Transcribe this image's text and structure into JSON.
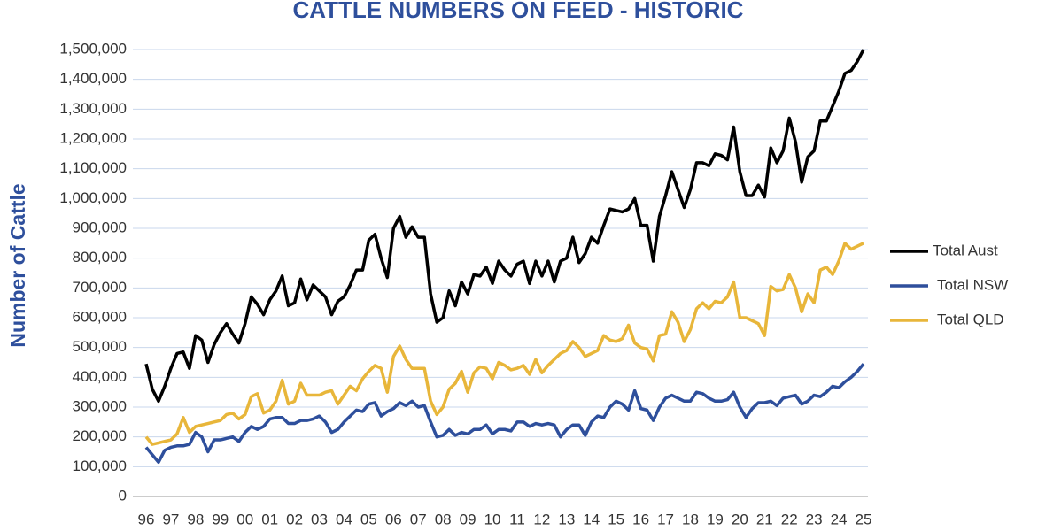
{
  "chart_data": {
    "type": "line",
    "title": "CATTLE NUMBERS ON FEED - HISTORIC",
    "y_label": "Number of Cattle",
    "categories": [
      "96",
      null,
      null,
      null,
      "97",
      null,
      null,
      null,
      "98",
      null,
      null,
      null,
      "99",
      null,
      null,
      null,
      "00",
      null,
      null,
      null,
      "01",
      null,
      null,
      null,
      "02",
      null,
      null,
      null,
      "03",
      null,
      null,
      null,
      "04",
      null,
      null,
      null,
      "05",
      null,
      null,
      null,
      "06",
      null,
      null,
      null,
      "07",
      null,
      null,
      null,
      "08",
      null,
      null,
      null,
      "09",
      null,
      null,
      null,
      "10",
      null,
      null,
      null,
      "11",
      null,
      null,
      null,
      "12",
      null,
      null,
      null,
      "13",
      null,
      null,
      null,
      "14",
      null,
      null,
      null,
      "15",
      null,
      null,
      null,
      "16",
      null,
      null,
      null,
      "17",
      null,
      null,
      null,
      "18",
      null,
      null,
      null,
      "19",
      null,
      null,
      null,
      "20",
      null,
      null,
      null,
      "21",
      null,
      null,
      null,
      "22",
      null,
      null,
      null,
      "23",
      null,
      null,
      null,
      "24",
      null,
      null,
      null,
      "25"
    ],
    "series": [
      {
        "name": "Total Aust",
        "color": "#000000",
        "values": [
          445000,
          360000,
          320000,
          370000,
          430000,
          480000,
          485000,
          430000,
          540000,
          525000,
          450000,
          510000,
          550000,
          580000,
          545000,
          515000,
          580000,
          670000,
          645000,
          610000,
          660000,
          690000,
          740000,
          640000,
          650000,
          730000,
          660000,
          710000,
          690000,
          670000,
          610000,
          655000,
          670000,
          710000,
          760000,
          760000,
          860000,
          880000,
          800000,
          735000,
          900000,
          940000,
          870000,
          905000,
          870000,
          870000,
          680000,
          585000,
          600000,
          690000,
          640000,
          720000,
          680000,
          745000,
          740000,
          770000,
          715000,
          790000,
          760000,
          740000,
          780000,
          790000,
          715000,
          790000,
          740000,
          790000,
          720000,
          790000,
          800000,
          870000,
          785000,
          815000,
          870000,
          850000,
          910000,
          965000,
          960000,
          955000,
          965000,
          1000000,
          910000,
          910000,
          790000,
          940000,
          1010000,
          1090000,
          1030000,
          970000,
          1030000,
          1120000,
          1120000,
          1110000,
          1150000,
          1145000,
          1130000,
          1240000,
          1090000,
          1010000,
          1010000,
          1045000,
          1005000,
          1170000,
          1120000,
          1160000,
          1270000,
          1190000,
          1055000,
          1140000,
          1160000,
          1260000,
          1260000,
          1310000,
          1360000,
          1420000,
          1430000,
          1460000,
          1500000
        ]
      },
      {
        "name": "Total NSW",
        "color": "#2e4f9c",
        "values": [
          165000,
          140000,
          115000,
          155000,
          165000,
          170000,
          170000,
          175000,
          215000,
          200000,
          150000,
          190000,
          190000,
          195000,
          200000,
          185000,
          215000,
          235000,
          225000,
          235000,
          260000,
          265000,
          265000,
          245000,
          245000,
          255000,
          255000,
          260000,
          270000,
          250000,
          215000,
          225000,
          250000,
          270000,
          290000,
          285000,
          310000,
          315000,
          270000,
          285000,
          295000,
          315000,
          305000,
          320000,
          300000,
          305000,
          250000,
          200000,
          205000,
          225000,
          205000,
          215000,
          210000,
          225000,
          225000,
          240000,
          210000,
          225000,
          225000,
          220000,
          250000,
          250000,
          235000,
          245000,
          240000,
          245000,
          240000,
          200000,
          225000,
          240000,
          240000,
          205000,
          250000,
          270000,
          265000,
          300000,
          320000,
          310000,
          290000,
          355000,
          295000,
          290000,
          255000,
          300000,
          330000,
          340000,
          330000,
          320000,
          320000,
          350000,
          345000,
          330000,
          320000,
          320000,
          325000,
          350000,
          300000,
          265000,
          295000,
          315000,
          315000,
          320000,
          305000,
          330000,
          335000,
          340000,
          310000,
          320000,
          340000,
          335000,
          350000,
          370000,
          365000,
          385000,
          400000,
          420000,
          445000
        ]
      },
      {
        "name": "Total QLD",
        "color": "#e8b63a",
        "values": [
          200000,
          175000,
          180000,
          185000,
          190000,
          210000,
          265000,
          215000,
          235000,
          240000,
          245000,
          250000,
          255000,
          275000,
          280000,
          260000,
          275000,
          335000,
          345000,
          280000,
          290000,
          320000,
          390000,
          310000,
          320000,
          380000,
          340000,
          340000,
          340000,
          350000,
          355000,
          310000,
          340000,
          370000,
          355000,
          395000,
          420000,
          440000,
          430000,
          350000,
          470000,
          505000,
          460000,
          430000,
          430000,
          430000,
          320000,
          275000,
          300000,
          360000,
          380000,
          420000,
          350000,
          415000,
          435000,
          430000,
          395000,
          450000,
          440000,
          425000,
          430000,
          440000,
          410000,
          460000,
          415000,
          440000,
          460000,
          480000,
          490000,
          520000,
          500000,
          470000,
          480000,
          490000,
          540000,
          525000,
          520000,
          530000,
          575000,
          515000,
          500000,
          495000,
          455000,
          540000,
          545000,
          620000,
          585000,
          520000,
          560000,
          630000,
          650000,
          630000,
          655000,
          650000,
          670000,
          720000,
          600000,
          600000,
          590000,
          580000,
          540000,
          705000,
          690000,
          695000,
          745000,
          700000,
          620000,
          680000,
          650000,
          760000,
          770000,
          745000,
          790000,
          850000,
          830000,
          840000,
          850000
        ]
      }
    ],
    "ylim": [
      0,
      1500000
    ],
    "yticks": [
      0,
      {
        "value": 100000,
        "label": "100,000"
      },
      {
        "value": 200000,
        "label": "200,000"
      },
      {
        "value": 300000,
        "label": "300,000"
      },
      {
        "value": 400000,
        "label": "400,000"
      },
      {
        "value": 500000,
        "label": "500,000"
      },
      {
        "value": 600000,
        "label": "600,000"
      },
      {
        "value": 700000,
        "label": "700,000"
      },
      {
        "value": 800000,
        "label": "800,000"
      },
      {
        "value": 900000,
        "label": "900,000"
      },
      {
        "value": 1000000,
        "label": "1,000,000"
      },
      {
        "value": 1100000,
        "label": "1,100,000"
      },
      {
        "value": 1200000,
        "label": "1,200,000"
      },
      {
        "value": 1300000,
        "label": "1,300,000"
      },
      {
        "value": 1400000,
        "label": "1,400,000"
      },
      {
        "value": 1500000,
        "label": "1,500,000"
      }
    ],
    "grid": true,
    "legend": "right"
  }
}
